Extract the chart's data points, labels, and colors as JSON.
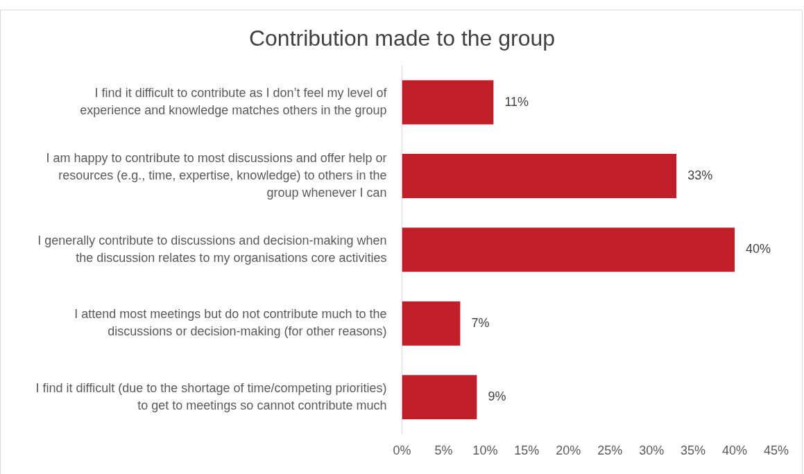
{
  "chart_data": {
    "type": "bar",
    "orientation": "horizontal",
    "title": "Contribution made to the group",
    "categories": [
      "I find it difficult to contribute as I don’t feel my level of experience and knowledge matches others in the group",
      "I am happy to contribute to most discussions and offer help or resources (e.g., time, expertise, knowledge) to others in the group whenever I can",
      "I generally contribute to discussions and decision-making when the discussion relates to my organisations core activities",
      "I attend most meetings but do not contribute much to the discussions or decision-making (for other reasons)",
      "I find it difficult (due to the shortage of time/competing priorities) to get to meetings so cannot contribute much"
    ],
    "values": [
      11,
      33,
      40,
      7,
      9
    ],
    "value_labels": [
      "11%",
      "33%",
      "40%",
      "7%",
      "9%"
    ],
    "color": "#c01f28",
    "xlim": [
      0,
      45
    ],
    "xticks": [
      {
        "value": 0,
        "label": "0%"
      },
      {
        "value": 5,
        "label": "5%"
      },
      {
        "value": 10,
        "label": "10%"
      },
      {
        "value": 15,
        "label": "15%"
      },
      {
        "value": 20,
        "label": "20%"
      },
      {
        "value": 25,
        "label": "25%"
      },
      {
        "value": 30,
        "label": "30%"
      },
      {
        "value": 35,
        "label": "35%"
      },
      {
        "value": 40,
        "label": "40%"
      },
      {
        "value": 45,
        "label": "45%"
      }
    ],
    "grid": false,
    "legend": false
  }
}
